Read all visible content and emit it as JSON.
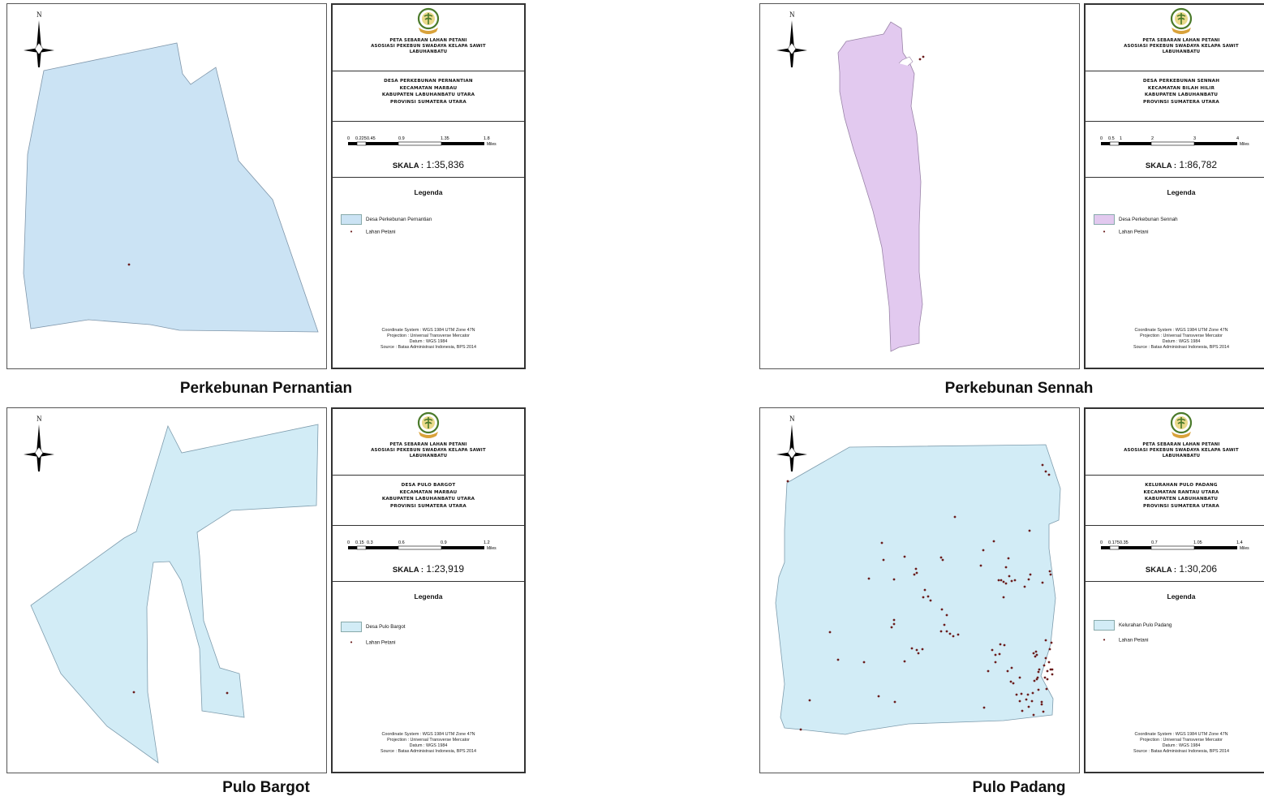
{
  "north_letter": "N",
  "map_title": [
    "PETA SEBARAN LAHAN PETANI",
    "ASOSIASI PEKEBUN SWADAYA KELAPA SAWIT",
    "LABUHANBATU"
  ],
  "lahan_label": "Lahan Petani",
  "legend_heading": "Legenda",
  "scale_prefix": "SKALA :",
  "scale_unit": "Miles",
  "coordinate_note": [
    "Coordinate System : WGS 1984 UTM Zone 47N",
    "Projection : Universal Transverse Mercator",
    "Datum : WGS 1984",
    "Source : Batas Administrasi Indonesia, BPS 2014"
  ],
  "colors": {
    "blue_fill": "#cbe3f4",
    "purple_fill": "#e2c9ef",
    "cyan_fill": "#d2ecf6",
    "point": "#6b1d1d",
    "emblem_green": "#4a7a2a",
    "emblem_gold": "#d9a23a"
  },
  "panels": [
    {
      "caption": "Perkebunan Pernantian",
      "fill": "#cbe3f4",
      "desc": [
        "DESA PERKEBUNAN PERNANTIAN",
        "KECAMATAN MARBAU",
        "KABUPATEN LABUHANBATU UTARA",
        "PROVINSI SUMATERA UTARA"
      ],
      "scale_ticks": [
        "0",
        "0.225",
        "0.45",
        "0.9",
        "1.35",
        "1.8"
      ],
      "scale_value": "1:35,836",
      "legend_area": "Desa Perkebunan Pernantian",
      "points": [
        [
          150,
          321
        ]
      ]
    },
    {
      "caption": "Perkebunan Sennah",
      "fill": "#e2c9ef",
      "desc": [
        "DESA PERKEBUNAN SENNAH",
        "KECAMATAN BILAH HILIR",
        "KABUPATEN LABUHANBATU",
        "PROVINSI SUMATERA UTARA"
      ],
      "scale_ticks": [
        "0",
        "0.5",
        "1",
        "2",
        "3",
        "4"
      ],
      "scale_value": "1:86,782",
      "legend_area": "Desa Perkebunan Sennah",
      "points": [
        [
          201,
          65
        ],
        [
          197,
          68
        ]
      ]
    },
    {
      "caption": "Pulo Bargot",
      "fill": "#d2ecf6",
      "desc": [
        "DESA PULO BARGOT",
        "KECAMATAN MARBAU",
        "KABUPATEN LABUHANBATU UTARA",
        "PROVINSI SUMATERA UTARA"
      ],
      "scale_ticks": [
        "0",
        "0.15",
        "0.3",
        "0.6",
        "0.9",
        "1.2"
      ],
      "scale_value": "1:23,919",
      "legend_area": "Desa Pulo Bargot",
      "points": [
        [
          156,
          350
        ],
        [
          271,
          351
        ]
      ]
    },
    {
      "caption": "Pulo Padang",
      "fill": "#d2ecf6",
      "desc": [
        "KELURAHAN PULO PADANG",
        "KECAMATAN RANTAU UTARA",
        "KABUPATEN LABUHANBATU",
        "PROVINSI SUMATERA UTARA"
      ],
      "scale_ticks": [
        "0",
        "0.175",
        "0.35",
        "0.7",
        "1.05",
        "1.4"
      ],
      "scale_value": "1:30,206",
      "legend_area": "Kelurahan Pulo Padang",
      "points": [
        [
          34,
          90
        ],
        [
          348,
          70
        ],
        [
          352,
          78
        ],
        [
          356,
          82
        ],
        [
          240,
          134
        ],
        [
          288,
          164
        ],
        [
          332,
          151
        ],
        [
          150,
          166
        ],
        [
          152,
          187
        ],
        [
          178,
          183
        ],
        [
          223,
          184
        ],
        [
          225,
          187
        ],
        [
          192,
          198
        ],
        [
          193,
          203
        ],
        [
          275,
          175
        ],
        [
          272,
          194
        ],
        [
          165,
          211
        ],
        [
          190,
          205
        ],
        [
          134,
          210
        ],
        [
          306,
          185
        ],
        [
          303,
          196
        ],
        [
          307,
          207
        ],
        [
          310,
          213
        ],
        [
          303,
          216
        ],
        [
          314,
          212
        ],
        [
          294,
          212
        ],
        [
          300,
          214
        ],
        [
          297,
          212
        ],
        [
          357,
          201
        ],
        [
          358,
          205
        ],
        [
          333,
          205
        ],
        [
          348,
          215
        ],
        [
          331,
          211
        ],
        [
          326,
          220
        ],
        [
          203,
          224
        ],
        [
          207,
          232
        ],
        [
          210,
          237
        ],
        [
          201,
          233
        ],
        [
          224,
          248
        ],
        [
          230,
          255
        ],
        [
          300,
          233
        ],
        [
          227,
          267
        ],
        [
          230,
          275
        ],
        [
          223,
          275
        ],
        [
          234,
          278
        ],
        [
          238,
          281
        ],
        [
          244,
          279
        ],
        [
          165,
          261
        ],
        [
          165,
          266
        ],
        [
          162,
          270
        ],
        [
          86,
          276
        ],
        [
          187,
          296
        ],
        [
          195,
          302
        ],
        [
          178,
          312
        ],
        [
          128,
          313
        ],
        [
          96,
          310
        ],
        [
          193,
          298
        ],
        [
          200,
          297
        ],
        [
          296,
          291
        ],
        [
          301,
          292
        ],
        [
          286,
          298
        ],
        [
          295,
          303
        ],
        [
          290,
          304
        ],
        [
          290,
          313
        ],
        [
          310,
          320
        ],
        [
          281,
          324
        ],
        [
          305,
          324
        ],
        [
          309,
          337
        ],
        [
          312,
          339
        ],
        [
          320,
          332
        ],
        [
          340,
          300
        ],
        [
          341,
          304
        ],
        [
          337,
          302
        ],
        [
          339,
          306
        ],
        [
          352,
          286
        ],
        [
          359,
          289
        ],
        [
          357,
          297
        ],
        [
          352,
          308
        ],
        [
          356,
          313
        ],
        [
          350,
          317
        ],
        [
          354,
          324
        ],
        [
          344,
          322
        ],
        [
          343,
          325
        ],
        [
          342,
          332
        ],
        [
          341,
          334
        ],
        [
          338,
          336
        ],
        [
          351,
          332
        ],
        [
          360,
          322
        ],
        [
          360,
          328
        ],
        [
          358,
          322
        ],
        [
          354,
          334
        ],
        [
          353,
          346
        ],
        [
          343,
          347
        ],
        [
          336,
          351
        ],
        [
          330,
          353
        ],
        [
          328,
          359
        ],
        [
          322,
          352
        ],
        [
          316,
          353
        ],
        [
          320,
          361
        ],
        [
          335,
          361
        ],
        [
          347,
          362
        ],
        [
          347,
          365
        ],
        [
          331,
          368
        ],
        [
          61,
          360
        ],
        [
          146,
          355
        ],
        [
          166,
          362
        ],
        [
          276,
          369
        ],
        [
          50,
          396
        ],
        [
          323,
          373
        ],
        [
          337,
          378
        ],
        [
          349,
          374
        ]
      ]
    }
  ]
}
